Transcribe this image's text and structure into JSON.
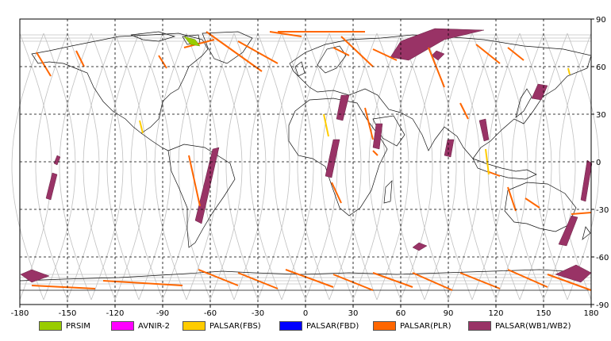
{
  "map": {
    "lon_range": [
      -180,
      180
    ],
    "lat_range": [
      -90,
      90
    ],
    "lon_ticks": [
      -180,
      -150,
      -120,
      -90,
      -60,
      -30,
      0,
      30,
      60,
      90,
      120,
      150,
      180
    ],
    "lat_ticks": [
      90,
      60,
      30,
      0,
      -30,
      -60,
      -90
    ],
    "gridlines": "dashed",
    "coastline_color": "#000000",
    "orbit_track_color": "#c0c0c0"
  },
  "legend": [
    {
      "label": "PRSIM",
      "color": "#99cc00"
    },
    {
      "label": "AVNIR-2",
      "color": "#ff00ff"
    },
    {
      "label": "PALSAR(FBS)",
      "color": "#ffcc00"
    },
    {
      "label": "PALSAR(FBD)",
      "color": "#0000ff"
    },
    {
      "label": "PALSAR(PLR)",
      "color": "#ff6600"
    },
    {
      "label": "PALSAR(WB1/WB2)",
      "color": "#993366"
    }
  ]
}
